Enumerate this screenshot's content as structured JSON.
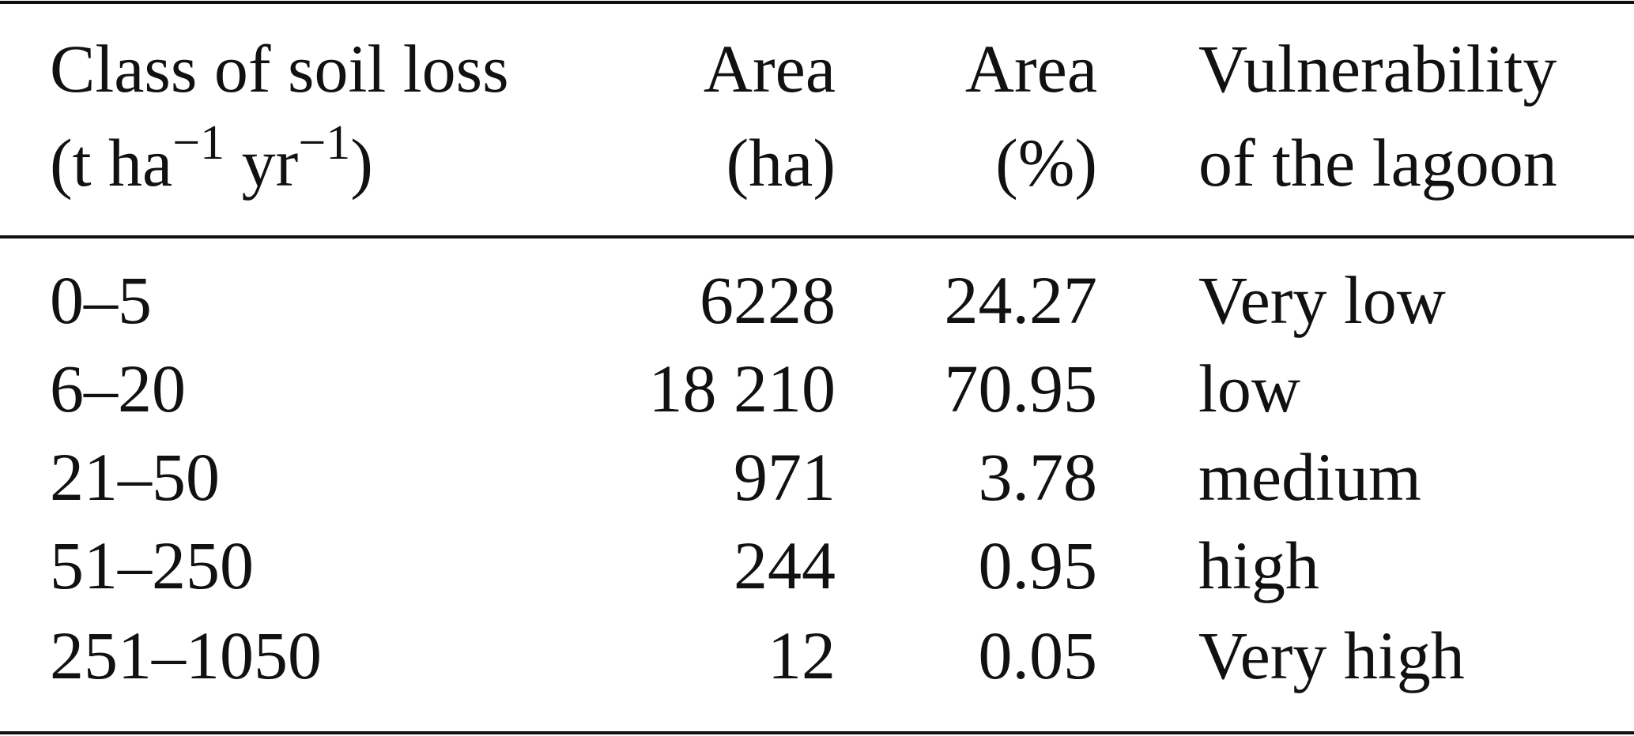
{
  "table": {
    "header": [
      {
        "lines": [
          [
            "Class of soil loss"
          ],
          [
            "(t ha",
            "−1",
            " yr",
            "−1",
            ")"
          ]
        ]
      },
      {
        "lines": [
          [
            "Area"
          ],
          [
            "(ha)"
          ]
        ]
      },
      {
        "lines": [
          [
            "Area"
          ],
          [
            "(%)"
          ]
        ]
      },
      {
        "lines": [
          [
            "Vulnerability"
          ],
          [
            "of the lagoon"
          ]
        ]
      }
    ],
    "rows": [
      [
        "0–5",
        "6228",
        "24.27",
        "Very low"
      ],
      [
        "6–20",
        "18 210",
        "70.95",
        "low"
      ],
      [
        "21–50",
        "971",
        "3.78",
        "medium"
      ],
      [
        "51–250",
        "244",
        "0.95",
        "high"
      ],
      [
        "251–1050",
        "12",
        "0.05",
        "Very high"
      ]
    ]
  }
}
